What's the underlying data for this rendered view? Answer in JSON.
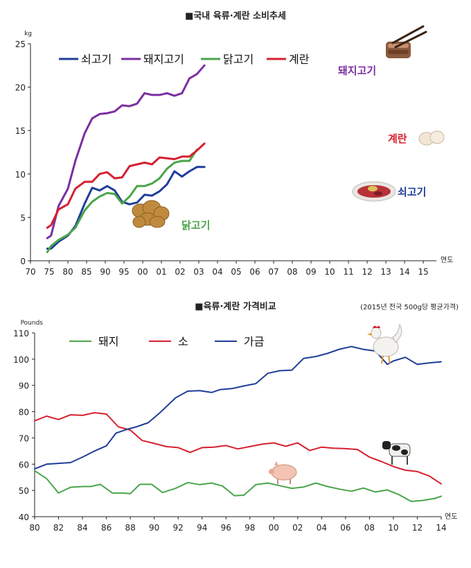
{
  "chart_data": [
    {
      "type": "line",
      "title": "■국내 육류·계란 소비추세",
      "ylabel": "kg",
      "xlabel": "연도",
      "ylim": [
        0,
        25
      ],
      "yticks": [
        0,
        5,
        10,
        15,
        20,
        25
      ],
      "x_tick_labels": [
        "70",
        "75",
        "80",
        "85",
        "90",
        "95",
        "00",
        "01",
        "02",
        "03",
        "04",
        "05",
        "06",
        "07",
        "08",
        "09",
        "10",
        "11",
        "12",
        "13",
        "14",
        "15"
      ],
      "legend_position": "top-left",
      "grid": false,
      "series": [
        {
          "name": "쇠고기",
          "color": "#1f3d99",
          "points": [
            [
              0.9,
              1.4
            ],
            [
              1.1,
              1.4
            ],
            [
              1.5,
              2.2
            ],
            [
              2.0,
              2.9
            ],
            [
              2.4,
              4.0
            ],
            [
              2.9,
              6.6
            ],
            [
              3.3,
              8.4
            ],
            [
              3.7,
              8.1
            ],
            [
              4.1,
              8.6
            ],
            [
              4.5,
              8.1
            ],
            [
              4.9,
              6.8
            ],
            [
              5.3,
              6.5
            ],
            [
              5.7,
              6.7
            ],
            [
              6.1,
              7.6
            ],
            [
              6.5,
              7.5
            ],
            [
              6.9,
              8.0
            ],
            [
              7.3,
              8.8
            ],
            [
              7.7,
              10.3
            ],
            [
              8.1,
              9.7
            ],
            [
              8.5,
              10.3
            ],
            [
              8.9,
              10.8
            ],
            [
              9.3,
              10.8
            ]
          ]
        },
        {
          "name": "돼지고기",
          "color": "#7b2ea0",
          "points": [
            [
              0.9,
              2.6
            ],
            [
              1.1,
              2.9
            ],
            [
              1.5,
              6.3
            ],
            [
              2.0,
              8.3
            ],
            [
              2.4,
              11.5
            ],
            [
              2.9,
              14.7
            ],
            [
              3.3,
              16.4
            ],
            [
              3.7,
              16.9
            ],
            [
              4.1,
              17.0
            ],
            [
              4.5,
              17.2
            ],
            [
              4.9,
              17.9
            ],
            [
              5.3,
              17.8
            ],
            [
              5.7,
              18.1
            ],
            [
              6.1,
              19.3
            ],
            [
              6.5,
              19.1
            ],
            [
              6.9,
              19.1
            ],
            [
              7.3,
              19.3
            ],
            [
              7.7,
              19.0
            ],
            [
              8.1,
              19.3
            ],
            [
              8.5,
              21.0
            ],
            [
              8.9,
              21.5
            ],
            [
              9.3,
              22.5
            ]
          ]
        },
        {
          "name": "닭고기",
          "color": "#4aa54a",
          "points": [
            [
              0.9,
              1.0
            ],
            [
              1.1,
              1.7
            ],
            [
              1.5,
              2.4
            ],
            [
              2.0,
              3.0
            ],
            [
              2.4,
              3.8
            ],
            [
              2.9,
              5.8
            ],
            [
              3.3,
              6.8
            ],
            [
              3.7,
              7.4
            ],
            [
              4.1,
              7.8
            ],
            [
              4.5,
              7.7
            ],
            [
              4.9,
              6.6
            ],
            [
              5.3,
              7.4
            ],
            [
              5.7,
              8.6
            ],
            [
              6.1,
              8.6
            ],
            [
              6.5,
              8.9
            ],
            [
              6.9,
              9.5
            ],
            [
              7.3,
              10.6
            ],
            [
              7.7,
              11.3
            ],
            [
              8.1,
              11.5
            ],
            [
              8.5,
              11.5
            ],
            [
              8.9,
              12.8
            ]
          ]
        },
        {
          "name": "계란",
          "color": "#d6202f",
          "points": [
            [
              0.9,
              3.8
            ],
            [
              1.1,
              4.1
            ],
            [
              1.5,
              5.9
            ],
            [
              2.0,
              6.5
            ],
            [
              2.4,
              8.3
            ],
            [
              2.9,
              9.1
            ],
            [
              3.3,
              9.1
            ],
            [
              3.7,
              10.0
            ],
            [
              4.1,
              10.2
            ],
            [
              4.5,
              9.5
            ],
            [
              4.9,
              9.6
            ],
            [
              5.3,
              10.9
            ],
            [
              5.7,
              11.1
            ],
            [
              6.1,
              11.3
            ],
            [
              6.5,
              11.1
            ],
            [
              6.9,
              11.9
            ],
            [
              7.3,
              11.8
            ],
            [
              7.7,
              11.7
            ],
            [
              8.1,
              12.0
            ],
            [
              8.5,
              12.0
            ],
            [
              8.9,
              12.7
            ],
            [
              9.3,
              13.5
            ]
          ]
        }
      ],
      "annotations": [
        {
          "text": "돼지고기",
          "color": "#7b2ea0",
          "series": 1,
          "near_index": 20,
          "image": "grilled-pork-image"
        },
        {
          "text": "계란",
          "color": "#d6202f",
          "series": 3,
          "near_index": 20,
          "image": "eggs-image"
        },
        {
          "text": "쇠고기",
          "color": "#1f3d99",
          "series": 0,
          "near_index": 20,
          "image": "beef-plate-image"
        },
        {
          "text": "닭고기",
          "color": "#4aa54a",
          "series": 2,
          "near_index": 6,
          "image": "fried-chicken-image"
        }
      ]
    },
    {
      "type": "line",
      "title": "■육류·계란 가격비교",
      "subtitle": "(2015년 전국 500g당 평균가격)",
      "ylabel": "Pounds",
      "xlabel": "연도",
      "ylim": [
        40,
        110
      ],
      "yticks": [
        40,
        50,
        60,
        70,
        80,
        90,
        100,
        110
      ],
      "xlim": [
        1980,
        2014
      ],
      "x_tick_labels": [
        "80",
        "82",
        "84",
        "86",
        "88",
        "90",
        "92",
        "94",
        "96",
        "98",
        "00",
        "02",
        "04",
        "06",
        "08",
        "10",
        "12",
        "14"
      ],
      "legend_position": "top-left",
      "grid": false,
      "series": [
        {
          "name": "돼지",
          "color": "#4aa54a",
          "x": [
            1980,
            1981,
            1982,
            1983,
            1984,
            1984.7,
            1985.5,
            1986.5,
            1987.3,
            1988,
            1988.8,
            1989.8,
            1990.7,
            1991.8,
            1992.8,
            1993.8,
            1994.8,
            1995.7,
            1996.7,
            1997.5,
            1998.5,
            1999.5,
            2000.5,
            2001.5,
            2002.5,
            2003.5,
            2004.5,
            2005.5,
            2006.5,
            2007.5,
            2008.5,
            2009.5,
            2010.5,
            2011.5,
            2012.5,
            2013.5,
            2014
          ],
          "y": [
            57.5,
            54.5,
            49,
            51.2,
            51.5,
            51.5,
            52.3,
            49,
            49,
            48.8,
            52.3,
            52.3,
            49.2,
            50.8,
            53,
            52.2,
            52.8,
            51.7,
            48,
            48.2,
            52.2,
            52.8,
            51.8,
            50.8,
            51.3,
            52.8,
            51.5,
            50.5,
            49.7,
            50.9,
            49.4,
            50.2,
            48.3,
            45.8,
            46.2,
            47,
            47.8
          ]
        },
        {
          "name": "소",
          "color": "#d6202f",
          "x": [
            1980,
            1981,
            1982,
            1983,
            1984,
            1985,
            1986,
            1987,
            1988,
            1989,
            1990,
            1991,
            1992,
            1993,
            1994,
            1995,
            1996,
            1997,
            1998,
            1999,
            2000,
            2001,
            2002,
            2003,
            2004,
            2005,
            2006,
            2007,
            2008,
            2009,
            2010,
            2011,
            2012,
            2013,
            2014
          ],
          "y": [
            76.5,
            78.3,
            77,
            78.8,
            78.6,
            79.6,
            79.1,
            74.2,
            73,
            69,
            67.9,
            66.7,
            66.3,
            64.5,
            66.3,
            66.5,
            67.1,
            65.8,
            66.7,
            67.6,
            68.1,
            66.8,
            68.1,
            65.2,
            66.5,
            66.1,
            65.9,
            65.6,
            62.7,
            61,
            59.1,
            57.7,
            57.2,
            55.5,
            52.5
          ]
        },
        {
          "name": "가금",
          "color": "#1f3d99",
          "x": [
            1980,
            1981,
            1982,
            1983,
            1984,
            1985,
            1986,
            1986.8,
            1987.8,
            1988.5,
            1989.5,
            1990.5,
            1991.8,
            1992.8,
            1993.8,
            1994.8,
            1995.5,
            1996.5,
            1997.5,
            1998.5,
            1999.5,
            2000.5,
            2001.5,
            2002.5,
            2003.5,
            2004.5,
            2005.5,
            2006.5,
            2007.5,
            2008.5,
            2009.5,
            2010,
            2011,
            2012,
            2013,
            2014
          ],
          "y": [
            58.2,
            60,
            60.3,
            60.6,
            62.7,
            65,
            67,
            71.8,
            73.4,
            74.2,
            75.8,
            79.7,
            85.3,
            87.8,
            88,
            87.3,
            88.4,
            88.8,
            89.8,
            90.7,
            94.6,
            95.6,
            95.8,
            100.3,
            101,
            102.2,
            103.8,
            104.8,
            103.7,
            103.1,
            98,
            99.3,
            100.7,
            98,
            98.6,
            99
          ]
        }
      ],
      "annotations": [
        {
          "series": 2,
          "near_x": 2009,
          "image": "rooster-image"
        },
        {
          "series": 1,
          "near_x": 2009.5,
          "image": "cow-image"
        },
        {
          "series": 0,
          "near_x": 2002,
          "image": "pig-image"
        }
      ]
    }
  ]
}
